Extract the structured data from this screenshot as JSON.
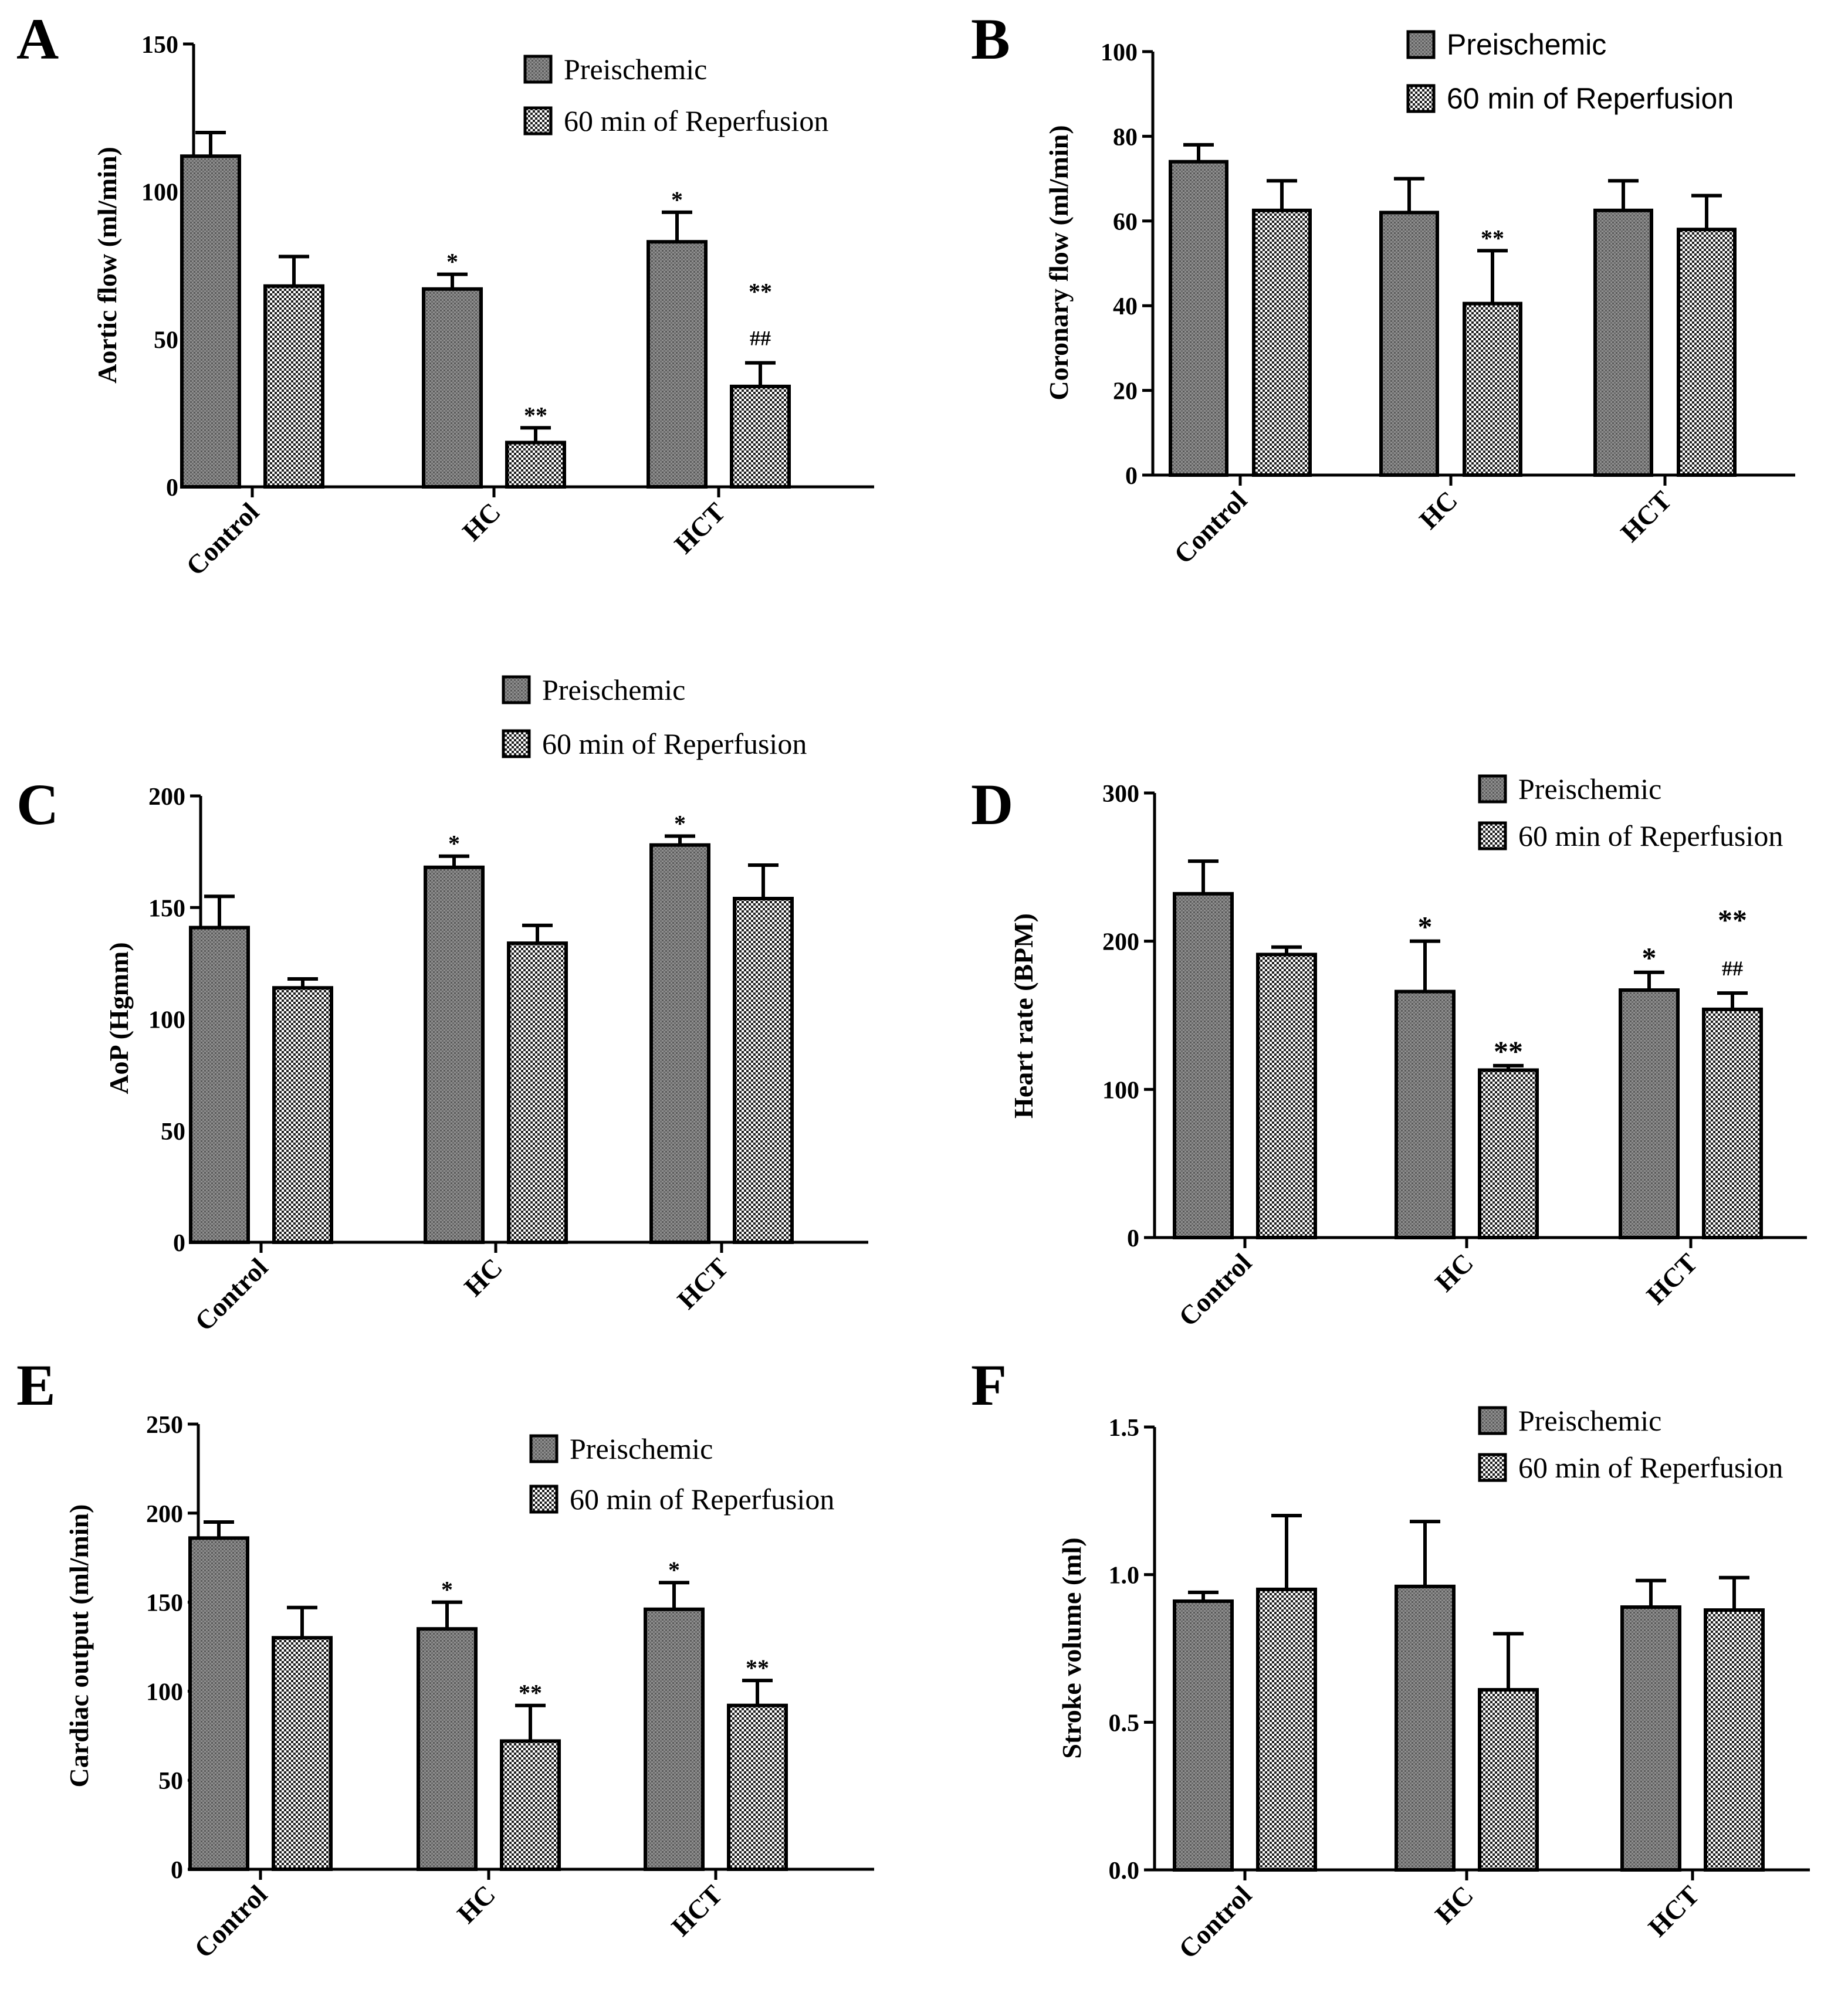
{
  "figure": {
    "groups": [
      "Control",
      "HC",
      "HCT"
    ],
    "legend": {
      "series_names": [
        "Preischemic",
        "60 min of Reperfusion"
      ]
    },
    "colors": {
      "ink": "#000000",
      "preischemic_fill": "#8a8a8a",
      "reperfusion_fill": "#2e2e2e",
      "background": "#ffffff"
    }
  },
  "chart_data": [
    {
      "id": "A",
      "panel_label": "A",
      "type": "bar",
      "title": "",
      "xlabel": "",
      "ylabel": "Aortic flow (ml/min)",
      "categories": [
        "Control",
        "HC",
        "HCT"
      ],
      "ylim": [
        0,
        150
      ],
      "yticks": [
        0,
        50,
        100,
        150
      ],
      "tick_labels": [
        "0",
        "50",
        "100",
        "150"
      ],
      "series": [
        {
          "name": "Preischemic",
          "values": [
            112,
            67,
            83
          ],
          "errors": [
            8,
            5,
            10
          ],
          "annotations": [
            "",
            "*",
            "*"
          ]
        },
        {
          "name": "60 min of Reperfusion",
          "values": [
            68,
            15,
            34
          ],
          "errors": [
            10,
            5,
            8
          ],
          "annotations": [
            "",
            "**",
            "**\n##"
          ]
        }
      ],
      "legend_position": "top-right"
    },
    {
      "id": "B",
      "panel_label": "B",
      "type": "bar",
      "title": "",
      "xlabel": "",
      "ylabel": "Coronary flow (ml/min)",
      "categories": [
        "Control",
        "HC",
        "HCT"
      ],
      "ylim": [
        0,
        100
      ],
      "yticks": [
        0,
        20,
        40,
        60,
        80,
        100
      ],
      "tick_labels": [
        "0",
        "20",
        "40",
        "60",
        "80",
        "100"
      ],
      "series": [
        {
          "name": "Preischemic",
          "values": [
            74,
            62,
            62.5
          ],
          "errors": [
            4,
            8,
            7
          ],
          "annotations": [
            "",
            "",
            ""
          ]
        },
        {
          "name": "60 min of Reperfusion",
          "values": [
            62.5,
            40.5,
            58
          ],
          "errors": [
            7,
            12.5,
            8
          ],
          "annotations": [
            "",
            "**",
            ""
          ]
        }
      ],
      "legend_position": "top-right"
    },
    {
      "id": "C",
      "panel_label": "C",
      "type": "bar",
      "title": "",
      "xlabel": "",
      "ylabel": "AoP (Hgmm)",
      "categories": [
        "Control",
        "HC",
        "HCT"
      ],
      "ylim": [
        0,
        200
      ],
      "yticks": [
        0,
        50,
        100,
        150,
        200
      ],
      "tick_labels": [
        "0",
        "50",
        "100",
        "150",
        "200"
      ],
      "series": [
        {
          "name": "Preischemic",
          "values": [
            141,
            168,
            178
          ],
          "errors": [
            14,
            5,
            4
          ],
          "annotations": [
            "",
            "*",
            "*"
          ]
        },
        {
          "name": "60 min of Reperfusion",
          "values": [
            114,
            134,
            154
          ],
          "errors": [
            4,
            8,
            15
          ],
          "annotations": [
            "",
            "",
            ""
          ]
        }
      ],
      "legend_position": "top-center"
    },
    {
      "id": "D",
      "panel_label": "D",
      "type": "bar",
      "title": "",
      "xlabel": "",
      "ylabel": "Heart rate (BPM)",
      "categories": [
        "Control",
        "HC",
        "HCT"
      ],
      "ylim": [
        0,
        300
      ],
      "yticks": [
        0,
        100,
        200,
        300
      ],
      "tick_labels": [
        "0",
        "100",
        "200",
        "300"
      ],
      "series": [
        {
          "name": "Preischemic",
          "values": [
            232,
            166,
            167
          ],
          "errors": [
            22,
            34,
            12
          ],
          "annotations": [
            "",
            "*",
            "*"
          ]
        },
        {
          "name": "60 min of Reperfusion",
          "values": [
            191,
            113,
            154
          ],
          "errors": [
            5,
            3,
            11
          ],
          "annotations": [
            "",
            "**",
            "**\n##"
          ]
        }
      ],
      "legend_position": "top-right"
    },
    {
      "id": "E",
      "panel_label": "E",
      "type": "bar",
      "title": "",
      "xlabel": "",
      "ylabel": "Cardiac output (ml/min)",
      "categories": [
        "Control",
        "HC",
        "HCT"
      ],
      "ylim": [
        0,
        250
      ],
      "yticks": [
        0,
        50,
        100,
        150,
        200,
        250
      ],
      "tick_labels": [
        "0",
        "50",
        "100",
        "150",
        "200",
        "250"
      ],
      "series": [
        {
          "name": "Preischemic",
          "values": [
            186,
            135,
            146
          ],
          "errors": [
            9,
            15,
            15
          ],
          "annotations": [
            "",
            "*",
            "*"
          ]
        },
        {
          "name": "60 min of Reperfusion",
          "values": [
            130,
            72,
            92
          ],
          "errors": [
            17,
            20,
            14
          ],
          "annotations": [
            "",
            "**",
            "**"
          ]
        }
      ],
      "legend_position": "top-right"
    },
    {
      "id": "F",
      "panel_label": "F",
      "type": "bar",
      "title": "",
      "xlabel": "",
      "ylabel": "Stroke volume (ml)",
      "categories": [
        "Control",
        "HC",
        "HCT"
      ],
      "ylim": [
        0,
        1.5
      ],
      "yticks": [
        0,
        0.5,
        1.0,
        1.5
      ],
      "tick_labels": [
        "0.0",
        "0.5",
        "1.0",
        "1.5"
      ],
      "series": [
        {
          "name": "Preischemic",
          "values": [
            0.91,
            0.96,
            0.89
          ],
          "errors": [
            0.03,
            0.22,
            0.09
          ],
          "annotations": [
            "",
            "",
            ""
          ]
        },
        {
          "name": "60 min of Reperfusion",
          "values": [
            0.95,
            0.61,
            0.88
          ],
          "errors": [
            0.25,
            0.19,
            0.11
          ],
          "annotations": [
            "",
            "",
            ""
          ]
        }
      ],
      "legend_position": "top-right"
    }
  ]
}
